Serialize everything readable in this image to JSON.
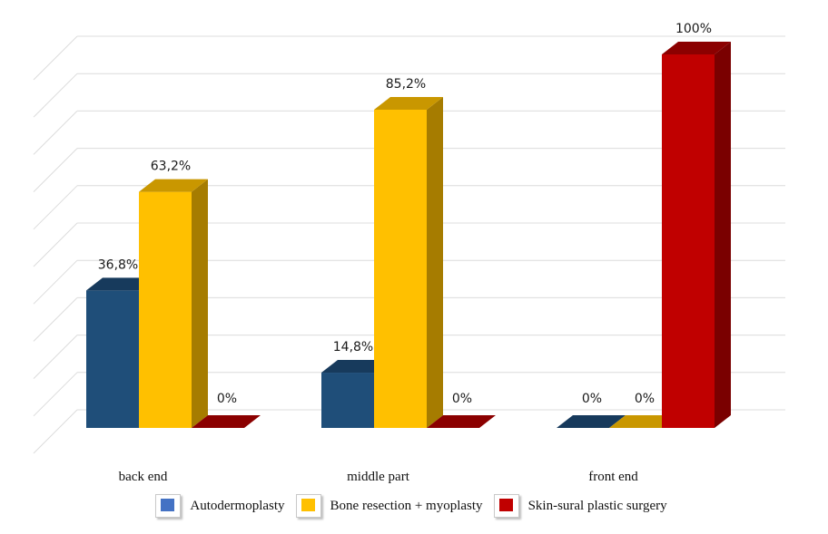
{
  "chart_data": {
    "type": "bar",
    "title": "",
    "xlabel": "",
    "ylabel": "",
    "categories": [
      "back end",
      "middle part",
      "front end"
    ],
    "series": [
      {
        "name": "Autodermoplasty",
        "values": [
          36.8,
          14.8,
          0
        ],
        "labels": [
          "36,8%",
          "14,8%",
          "0%"
        ]
      },
      {
        "name": "Bone resection + myoplasty",
        "values": [
          63.2,
          85.2,
          0
        ],
        "labels": [
          "63,2%",
          "85,2%",
          "0%"
        ]
      },
      {
        "name": "Skin-sural plastic surgery",
        "values": [
          0,
          0,
          100
        ],
        "labels": [
          "0%",
          "0%",
          "100%"
        ]
      }
    ],
    "ylim": [
      0,
      100
    ],
    "grid": true,
    "style": "3d",
    "legend_position": "bottom",
    "colors": {
      "Autodermoplasty": {
        "front": "#1f4e79",
        "top": "#173a5c",
        "side": "#153452",
        "legend": "#4472c4"
      },
      "Bone resection + myoplasty": {
        "front": "#ffc000",
        "top": "#c99700",
        "side": "#a67c00",
        "legend": "#ffc000"
      },
      "Skin-sural plastic surgery": {
        "front": "#c00000",
        "top": "#8b0000",
        "side": "#7a0000",
        "legend": "#c00000"
      }
    }
  }
}
